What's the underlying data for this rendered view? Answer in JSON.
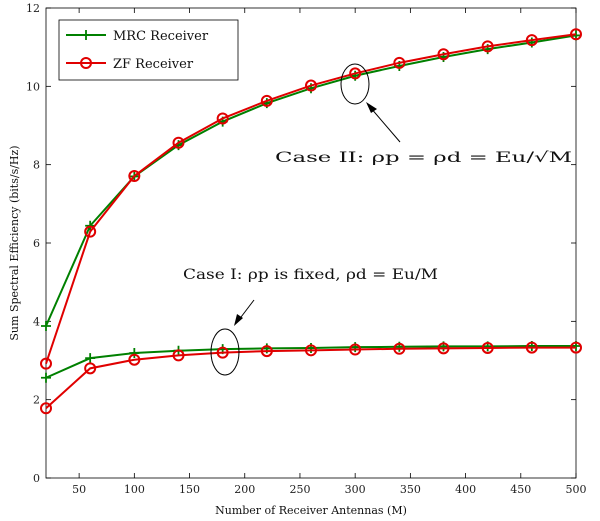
{
  "chart_data": {
    "type": "line",
    "xlabel": "Number of Receiver Antennas (M)",
    "ylabel": "Sum Spectral Efficiency (bits/s/Hz)",
    "xlim": [
      20,
      500
    ],
    "ylim": [
      0,
      12
    ],
    "xticks": [
      50,
      100,
      150,
      200,
      250,
      300,
      350,
      400,
      450,
      500
    ],
    "yticks": [
      0,
      2,
      4,
      6,
      8,
      10,
      12
    ],
    "grid": false,
    "legend": {
      "placement": "top-left"
    },
    "x": [
      20,
      60,
      100,
      140,
      180,
      220,
      260,
      300,
      340,
      380,
      420,
      460,
      500
    ],
    "series": [
      {
        "name": "MRC Receiver",
        "case": "II",
        "color": "#008000",
        "marker": "plus",
        "values": [
          3.88,
          6.44,
          7.7,
          8.5,
          9.1,
          9.57,
          9.95,
          10.27,
          10.52,
          10.75,
          10.95,
          11.12,
          11.3
        ]
      },
      {
        "name": "ZF Receiver",
        "case": "II",
        "color": "#e00000",
        "marker": "circle",
        "values": [
          2.92,
          6.29,
          7.71,
          8.56,
          9.18,
          9.63,
          10.02,
          10.33,
          10.6,
          10.82,
          11.02,
          11.18,
          11.33
        ]
      },
      {
        "name": "MRC Receiver",
        "case": "I",
        "color": "#008000",
        "marker": "plus",
        "values": [
          2.56,
          3.06,
          3.19,
          3.25,
          3.29,
          3.31,
          3.32,
          3.34,
          3.35,
          3.36,
          3.36,
          3.37,
          3.37
        ]
      },
      {
        "name": "ZF Receiver",
        "case": "I",
        "color": "#e00000",
        "marker": "circle",
        "values": [
          1.78,
          2.8,
          3.02,
          3.13,
          3.2,
          3.24,
          3.26,
          3.28,
          3.3,
          3.31,
          3.32,
          3.33,
          3.33
        ]
      }
    ],
    "annotations": [
      {
        "id": "case2",
        "text": "Case II: ρp = ρd = Eu/√M"
      },
      {
        "id": "case1",
        "text": "Case I: ρp is fixed, ρd = Eu/M"
      }
    ]
  }
}
